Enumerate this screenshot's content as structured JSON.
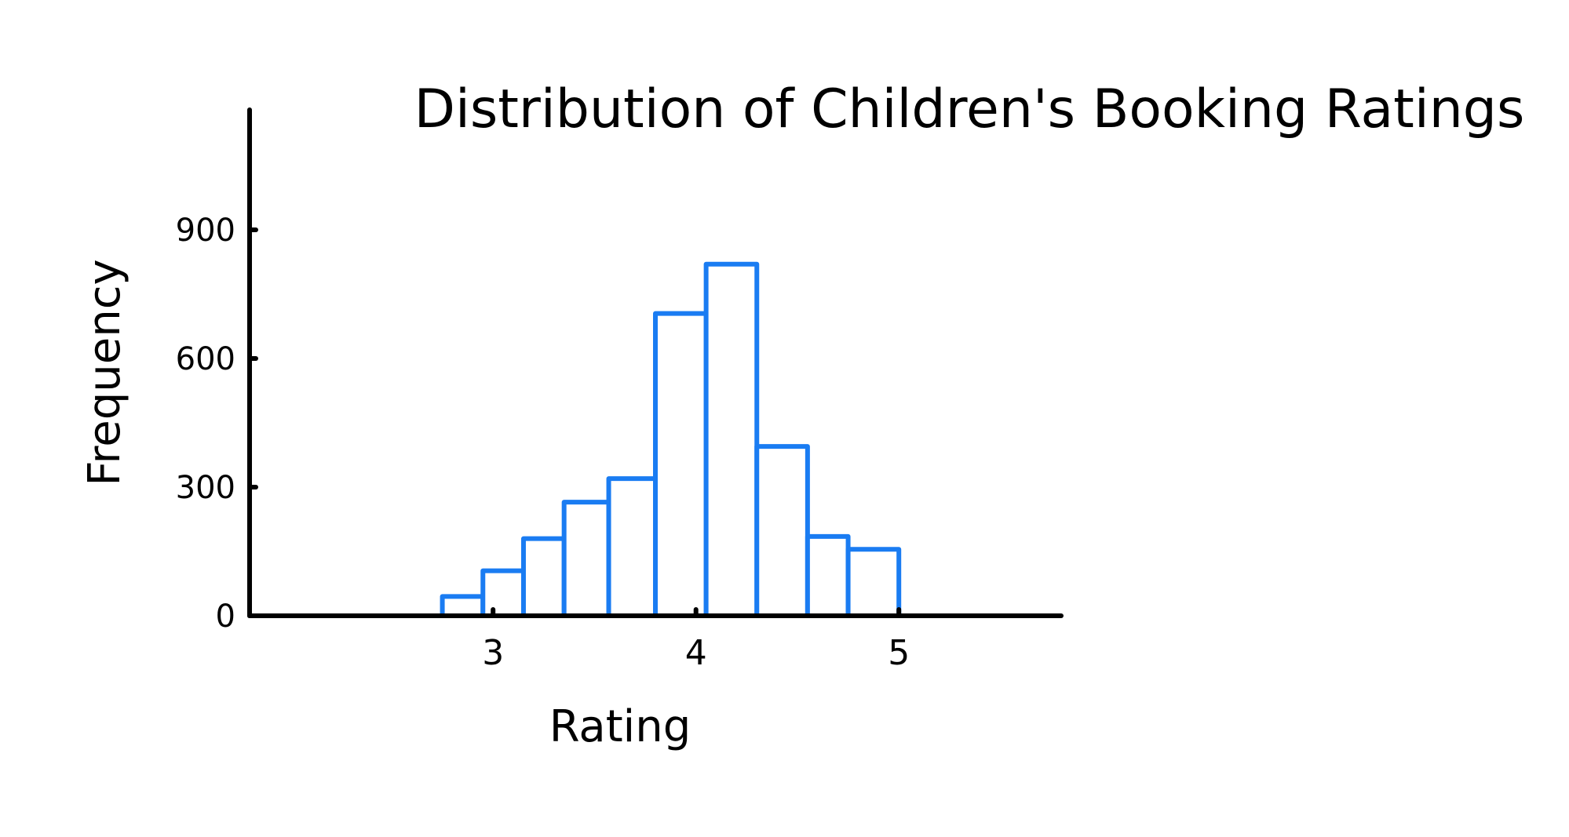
{
  "chart_data": {
    "type": "bar",
    "title": "Distribution of Children's Booking Ratings",
    "xlabel": "Rating",
    "ylabel": "Frequency",
    "bin_edges": [
      2.75,
      2.95,
      3.15,
      3.35,
      3.57,
      3.8,
      4.05,
      4.3,
      4.55,
      4.75,
      5.0
    ],
    "values": [
      45,
      105,
      180,
      265,
      320,
      705,
      820,
      395,
      185,
      155
    ],
    "xticks": [
      3,
      4,
      5
    ],
    "yticks": [
      0,
      300,
      600,
      900
    ],
    "xlim": [
      1.8,
      5.8
    ],
    "ylim": [
      0,
      1180
    ],
    "bar_color": "#1a7cf2",
    "axis_color": "#000000",
    "grid": false,
    "legend": "none"
  }
}
